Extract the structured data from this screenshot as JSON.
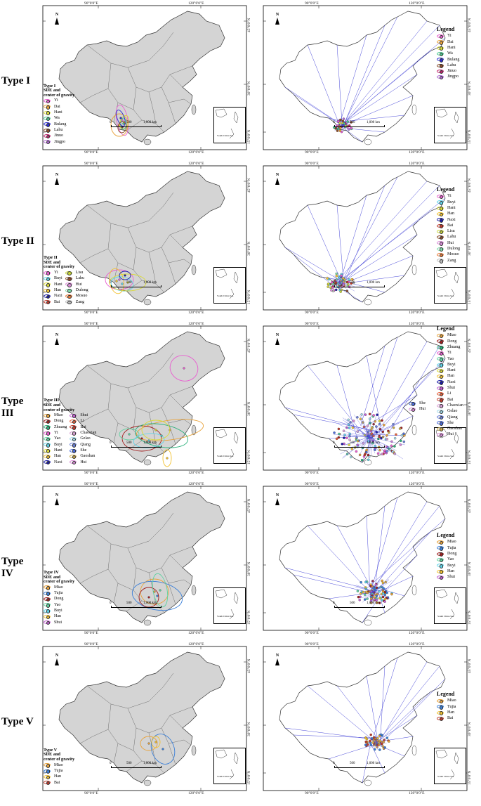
{
  "labels": {
    "north": "N",
    "lon90": "90°0'0\"E",
    "lon120": "120°0'0\"E",
    "lat45": "45°0'0\"N",
    "lat30": "30°0'0\"N",
    "lat15": "15°0'0\"N",
    "scale0": "0",
    "scale500": "500",
    "scale1000": "1,000 km",
    "inset_caption": "South China Sea",
    "legend_heading": "Legend",
    "sde_line1": "SDE and",
    "sde_line2": "center of gravity"
  },
  "rows": [
    {
      "type_label": "Type I",
      "sde_title": "Type I",
      "legend_cols": 1,
      "items": [
        {
          "name": "Yi",
          "color": "#e85fd0"
        },
        {
          "name": "Dai",
          "color": "#e8a23a"
        },
        {
          "name": "Hani",
          "color": "#d9d93a"
        },
        {
          "name": "Wa",
          "color": "#49c98f"
        },
        {
          "name": "Bulang",
          "color": "#2a2ad1"
        },
        {
          "name": "Lahu",
          "color": "#8a4b2a"
        },
        {
          "name": "Jinuo",
          "color": "#c11f6a"
        },
        {
          "name": "Jingpo",
          "color": "#b06ad4"
        }
      ]
    },
    {
      "type_label": "Type II",
      "sde_title": "Type II",
      "legend_cols": 2,
      "items": [
        {
          "name": "Yi",
          "color": "#e85fd0"
        },
        {
          "name": "Buyi",
          "color": "#5fd3e8"
        },
        {
          "name": "Hani",
          "color": "#d9d93a"
        },
        {
          "name": "Han",
          "color": "#f2c230"
        },
        {
          "name": "Naxi",
          "color": "#1a1aa8"
        },
        {
          "name": "Bai",
          "color": "#c0392b"
        },
        {
          "name": "Lisu",
          "color": "#c7d43a"
        },
        {
          "name": "Lahu",
          "color": "#8a4b2a"
        },
        {
          "name": "Hui",
          "color": "#d88ad6"
        },
        {
          "name": "Dulong",
          "color": "#7fd8a8"
        },
        {
          "name": "Mosuo",
          "color": "#e87a3a"
        },
        {
          "name": "Zang",
          "color": "#bcbcbc"
        }
      ]
    },
    {
      "type_label": "Type III",
      "sde_title": "Type III",
      "legend_cols": 2,
      "items": [
        {
          "name": "Miao",
          "color": "#e8a23a"
        },
        {
          "name": "Dong",
          "color": "#a11f1f"
        },
        {
          "name": "Zhuang",
          "color": "#2ab07a"
        },
        {
          "name": "Yi",
          "color": "#e85fd0"
        },
        {
          "name": "Yao",
          "color": "#5fd3a0"
        },
        {
          "name": "Buyi",
          "color": "#5fd3e8"
        },
        {
          "name": "Hani",
          "color": "#d9d93a"
        },
        {
          "name": "Han",
          "color": "#f2c230"
        },
        {
          "name": "Naxi",
          "color": "#1a1aa8"
        },
        {
          "name": "Shui",
          "color": "#c15fd0"
        },
        {
          "name": "Li",
          "color": "#e8603a"
        },
        {
          "name": "Bai",
          "color": "#c0392b"
        },
        {
          "name": "Chaoxian",
          "color": "#d8a0d6"
        },
        {
          "name": "Gelao",
          "color": "#a0d8e8"
        },
        {
          "name": "Qiang",
          "color": "#6a7fd8"
        },
        {
          "name": "She",
          "color": "#4a6ad8"
        },
        {
          "name": "Gaoshan",
          "color": "#c8a84a"
        },
        {
          "name": "Hui",
          "color": "#d88ad6"
        }
      ]
    },
    {
      "type_label": "Type IV",
      "sde_title": "Type IV",
      "legend_cols": 1,
      "items": [
        {
          "name": "Miao",
          "color": "#e8a23a"
        },
        {
          "name": "Tujia",
          "color": "#3a7fd8"
        },
        {
          "name": "Dong",
          "color": "#a11f1f"
        },
        {
          "name": "Yao",
          "color": "#5fd3a0"
        },
        {
          "name": "Buyi",
          "color": "#5fd3e8"
        },
        {
          "name": "Han",
          "color": "#f2c230"
        },
        {
          "name": "Shui",
          "color": "#c15fd0"
        }
      ]
    },
    {
      "type_label": "Type V",
      "sde_title": "Type V",
      "legend_cols": 1,
      "items": [
        {
          "name": "Miao",
          "color": "#e8a23a"
        },
        {
          "name": "Tujia",
          "color": "#3a7fd8"
        },
        {
          "name": "Han",
          "color": "#f2c230"
        },
        {
          "name": "Bai",
          "color": "#c0392b"
        }
      ]
    }
  ],
  "right_extra_legend": {
    "row_index": 2,
    "items": [
      {
        "name": "She",
        "color": "#4a6ad8"
      },
      {
        "name": "Hui",
        "color": "#d88ad6"
      }
    ]
  },
  "colors": {
    "china_fill": "#d4d4d4",
    "china_fill_light": "#ffffff",
    "voronoi_line": "#4a4ad8"
  }
}
